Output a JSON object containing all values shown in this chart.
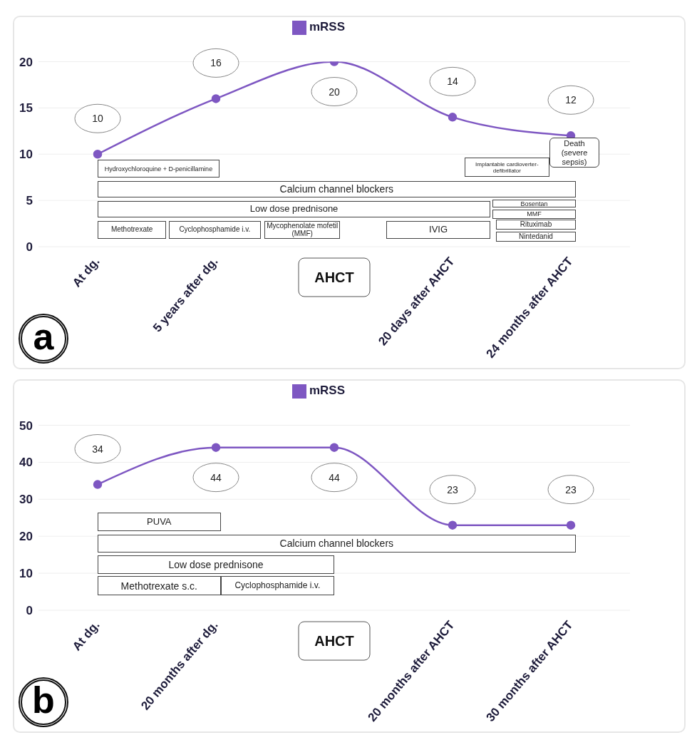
{
  "chart_data": [
    {
      "type": "line",
      "categories": [
        "At dg.",
        "5 years after dg.",
        "AHCT",
        "20 days after AHCT",
        "24 months after AHCT"
      ],
      "series": [
        {
          "name": "mRSS",
          "color": "#7e57c2",
          "values": [
            10,
            16,
            20,
            14,
            12
          ]
        }
      ],
      "ylim": [
        0,
        20
      ],
      "yticks": [
        0,
        5,
        10,
        15,
        20
      ],
      "grid": "y",
      "legend": "top",
      "marker": "circle",
      "line_style": "solid",
      "data_labels": true,
      "annotations": [
        "a",
        "Hydroxychloroquine + D-penicillamine",
        "Calcium channel blockers",
        "Low dose prednisone",
        "Methotrexate",
        "Cyclophosphamide i.v.",
        "Mycophenolate mofetil (MMF)",
        "IVIG",
        "Bosentan",
        "MMF",
        "Rituximab",
        "Nintedanid",
        "Implantable cardioverter-defibrillator",
        "Death (severe sepsis)"
      ]
    },
    {
      "type": "line",
      "categories": [
        "At dg.",
        "20 months after dg.",
        "AHCT",
        "20 months after AHCT",
        "30 months after AHCT"
      ],
      "series": [
        {
          "name": "mRSS",
          "color": "#7e57c2",
          "values": [
            34,
            44,
            44,
            23,
            23
          ]
        }
      ],
      "ylim": [
        0,
        50
      ],
      "yticks": [
        0,
        10,
        20,
        30,
        40,
        50
      ],
      "grid": "y",
      "legend": "top",
      "marker": "circle",
      "line_style": "solid",
      "data_labels": true,
      "annotations": [
        "b",
        "PUVA",
        "Calcium channel blockers",
        "Low dose prednisone",
        "Methotrexate s.c.",
        "Cyclophosphamide i.v."
      ]
    }
  ]
}
